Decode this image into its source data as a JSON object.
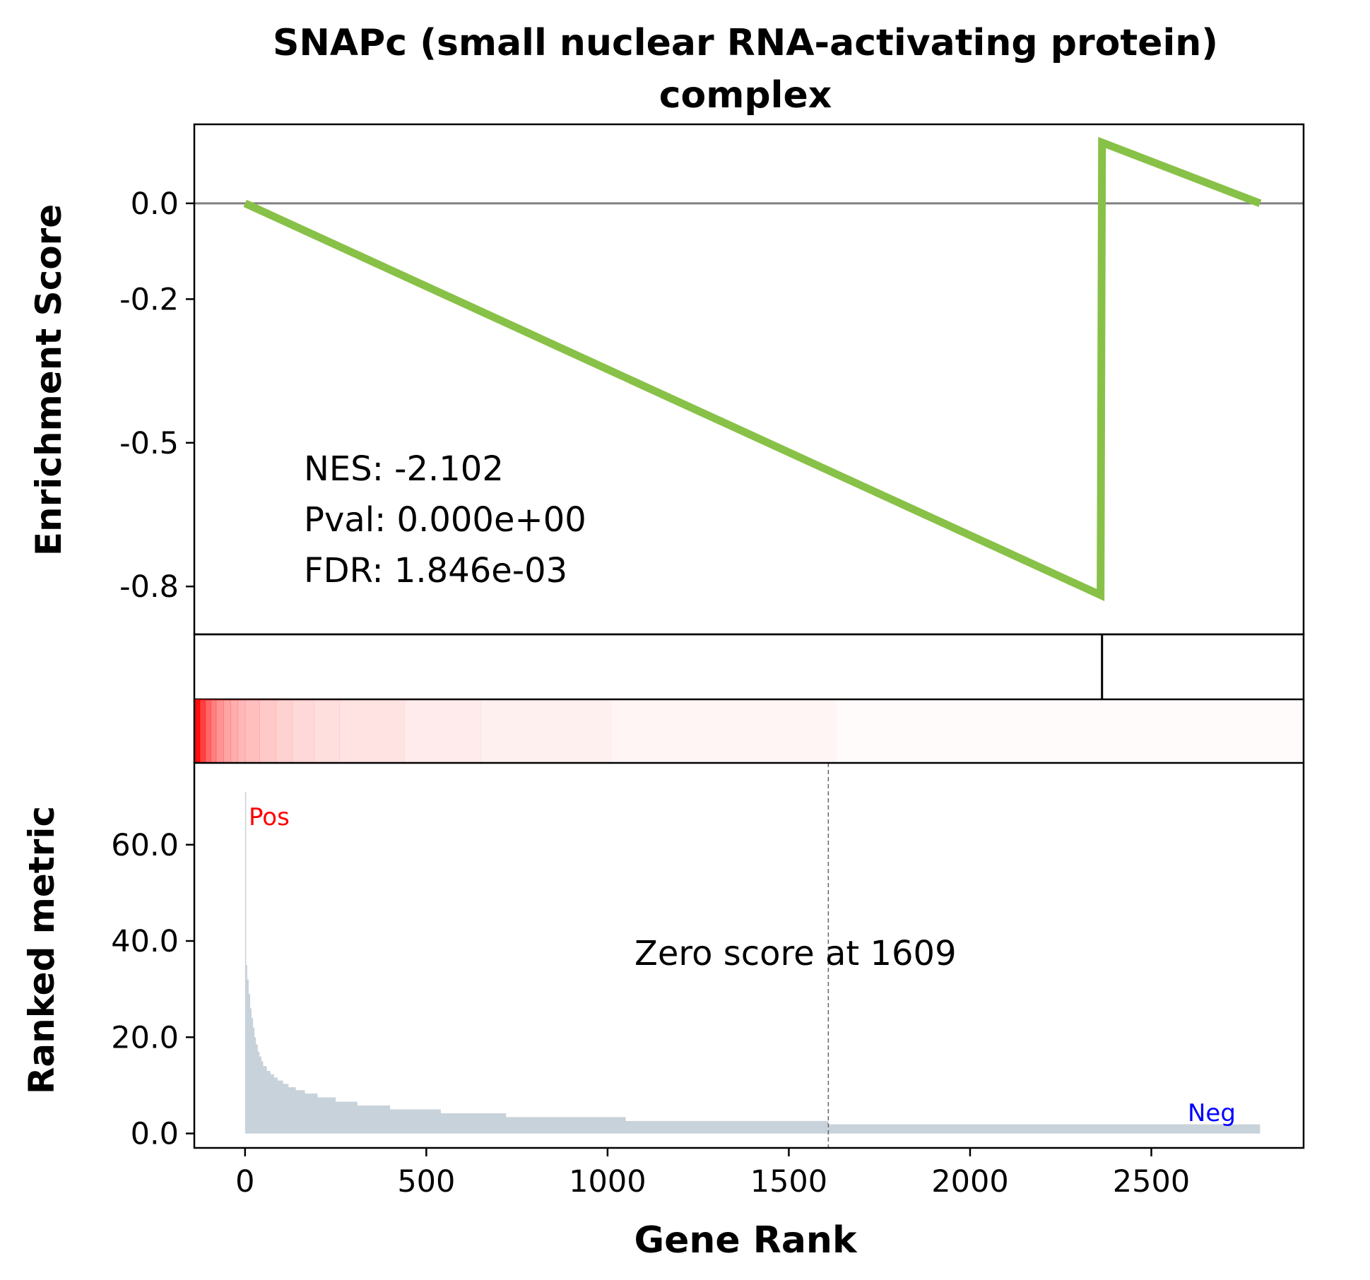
{
  "chart_data": {
    "type": "line",
    "title_line1": "SNAPc (small nuclear RNA-activating protein)",
    "title_line2": "complex",
    "xlabel": "Gene Rank",
    "ylabel_top": "Enrichment Score",
    "ylabel_bottom": "Ranked metric",
    "xlim": [
      -140,
      2920
    ],
    "es_ylim": [
      -0.9,
      0.165
    ],
    "metric_ylim": [
      -3,
      77
    ],
    "x_ticks": [
      0,
      500,
      1000,
      1500,
      2000,
      2500
    ],
    "es_ticks": [
      0.0,
      -0.2,
      -0.5,
      -0.8
    ],
    "es_tick_labels": [
      "0.0",
      "-0.2",
      "-0.5",
      "-0.8"
    ],
    "metric_ticks": [
      0,
      20,
      40,
      60
    ],
    "metric_tick_labels": [
      "0.0",
      "20.0",
      "40.0",
      "60.0"
    ],
    "stats": {
      "nes": "NES: -2.102",
      "pval": "Pval: 0.000e+00",
      "fdr": "FDR: 1.846e-03"
    },
    "es_curve": {
      "name": "",
      "color": "#88c147",
      "x": [
        0,
        2360,
        2364,
        2800
      ],
      "y": [
        0.0,
        -0.818,
        0.127,
        0.0
      ]
    },
    "hit_positions": [
      2364
    ],
    "zero_score_rank": 1609,
    "zero_score_label": "Zero score at 1609",
    "pos_label": "Pos",
    "neg_label": "Neg",
    "pos_color": "#ff0000",
    "neg_color": "#0000ff",
    "metric_color": "#c8d2db",
    "ranked_metric": {
      "x": [
        0,
        3,
        6,
        10,
        14,
        18,
        22,
        26,
        30,
        35,
        40,
        45,
        50,
        60,
        70,
        80,
        90,
        105,
        120,
        140,
        165,
        200,
        250,
        310,
        400,
        540,
        720,
        1050,
        1609,
        2800
      ],
      "y": [
        71,
        35,
        32,
        29,
        26,
        24,
        22,
        20,
        18.5,
        17,
        16,
        15,
        14,
        13,
        12.3,
        11.6,
        11,
        10.3,
        9.6,
        9,
        8.3,
        7.5,
        6.6,
        5.8,
        5.0,
        4.2,
        3.4,
        2.6,
        1.9,
        1.3
      ]
    },
    "heat_cells": {
      "x": [
        -140,
        -125,
        -110,
        -95,
        -80,
        -60,
        -40,
        -20,
        0,
        40,
        85,
        130,
        190,
        260,
        440,
        650,
        1010,
        1630
      ],
      "alpha": [
        0.95,
        0.75,
        0.6,
        0.5,
        0.42,
        0.36,
        0.32,
        0.28,
        0.25,
        0.21,
        0.18,
        0.15,
        0.13,
        0.11,
        0.08,
        0.06,
        0.04,
        0.015
      ]
    }
  }
}
